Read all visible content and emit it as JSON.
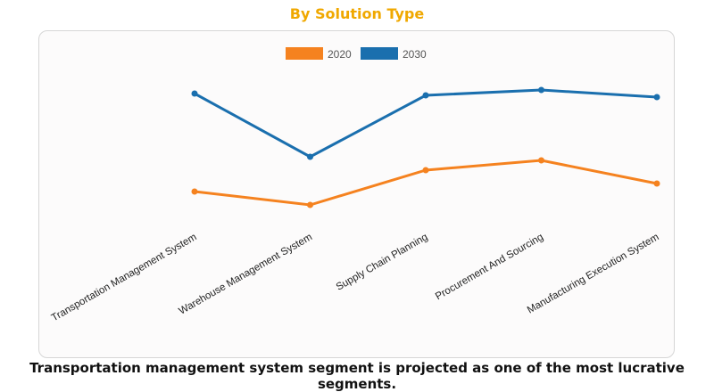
{
  "chart_data": {
    "type": "line",
    "title": "By Solution Type",
    "categories": [
      "Transportation Management System",
      "Warehouse Management System",
      "Supply Chain Planning",
      "Procurement And Sourcing",
      "Manufacturing Execution System"
    ],
    "series": [
      {
        "name": "2020",
        "color": "#f5821f",
        "values": [
          22.5,
          15,
          34.5,
          40,
          27
        ]
      },
      {
        "name": "2030",
        "color": "#1a6fae",
        "values": [
          77.5,
          42,
          76.5,
          79.5,
          75.5
        ]
      }
    ],
    "xlabel": "",
    "ylabel": "",
    "ylim": [
      0,
      100
    ],
    "grid": false,
    "legend": "top-center"
  },
  "caption": "Transportation management system segment is projected as one of the most lucrative segments."
}
